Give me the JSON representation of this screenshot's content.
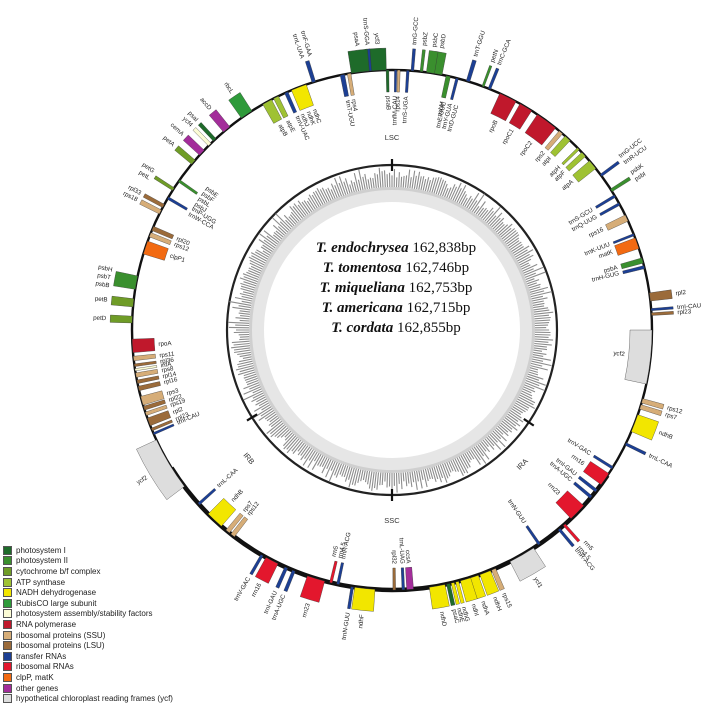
{
  "species": [
    {
      "name": "T. endochrysea",
      "size": "162,838bp"
    },
    {
      "name": "T. tomentosa",
      "size": "162,746bp"
    },
    {
      "name": "T. miqueliana",
      "size": "162,753bp"
    },
    {
      "name": "T. americana",
      "size": "162,715bp"
    },
    {
      "name": "T. cordata",
      "size": "162,855bp"
    }
  ],
  "regions": {
    "lsc": "LSC",
    "irb": "IRB",
    "ssc": "SSC",
    "ira": "IRA"
  },
  "colors": {
    "photosystem I": "#1e6b2a",
    "photosystem II": "#3a8f2e",
    "cytochrome b/f complex": "#6f9c27",
    "ATP synthase": "#9fc233",
    "NADH dehydrogenase": "#f2e600",
    "RubisCO large subunit": "#2e9a3a",
    "photosystem assembly/stability factors": "#fbfbd5",
    "RNA polymerase": "#c0182c",
    "ribosomal proteins (SSU)": "#d6ad78",
    "ribosomal proteins (LSU)": "#9b6b3a",
    "transfer RNAs": "#1c3f94",
    "ribosomal RNAs": "#e3172d",
    "clpP, matK": "#f26a12",
    "other genes": "#a32d9a",
    "hypothetical chloroplast reading frames (ycf)": "#dddddd"
  },
  "legend": [
    "photosystem I",
    "photosystem II",
    "cytochrome b/f complex",
    "ATP synthase",
    "NADH dehydrogenase",
    "RubisCO large subunit",
    "photosystem assembly/stability factors",
    "RNA polymerase",
    "ribosomal proteins (SSU)",
    "ribosomal proteins (LSU)",
    "transfer RNAs",
    "ribosomal RNAs",
    "clpP, matK",
    "other genes",
    "hypothetical chloroplast reading frames (ycf)"
  ],
  "genes": [
    {
      "a": 357,
      "w": 3.5,
      "o": 1,
      "c": "photosystem I",
      "l": [
        "ycf3"
      ]
    },
    {
      "a": 355,
      "w": 1,
      "o": 1,
      "c": "transfer RNAs",
      "l": [
        "trnS-GGA"
      ]
    },
    {
      "a": 350.5,
      "w": 0.8,
      "o": 0,
      "c": "ribosomal proteins (SSU)",
      "l": [
        "rps4"
      ]
    },
    {
      "a": 349,
      "w": 1,
      "o": 0,
      "c": "transfer RNAs",
      "l": [
        "trnT-UGU"
      ]
    },
    {
      "a": 342.5,
      "w": 0.8,
      "o": 1,
      "c": "transfer RNAs",
      "l": [
        "trnL-UAA",
        "trnF-GAA"
      ]
    },
    {
      "a": 339,
      "w": 3.5,
      "o": 0,
      "c": "NADH dehydrogenase",
      "l": [
        "ndhJ",
        "ndhK",
        "ndhC"
      ]
    },
    {
      "a": 336,
      "w": 0.8,
      "o": 0,
      "c": "transfer RNAs",
      "l": [
        "trnV-UAC"
      ]
    },
    {
      "a": 333.5,
      "w": 1.2,
      "o": 0,
      "c": "ATP synthase",
      "l": [
        "atpE"
      ]
    },
    {
      "a": 331.3,
      "w": 2.2,
      "o": 0,
      "c": "ATP synthase",
      "l": [
        "atpB"
      ]
    },
    {
      "a": 326,
      "w": 2.8,
      "o": 1,
      "c": "RubisCO large subunit",
      "l": [
        "rbcL"
      ]
    },
    {
      "a": 320.5,
      "w": 1.8,
      "o": 1,
      "c": "other genes",
      "l": [
        "accD"
      ]
    },
    {
      "a": 317,
      "w": 0.8,
      "o": 1,
      "c": "photosystem I",
      "l": [
        "psaI"
      ]
    },
    {
      "a": 315.5,
      "w": 0.8,
      "o": 1,
      "c": "photosystem assembly/stability factors",
      "l": [
        "ycf4"
      ]
    },
    {
      "a": 313,
      "w": 1.5,
      "o": 1,
      "c": "other genes",
      "l": [
        "cemA"
      ]
    },
    {
      "a": 310.2,
      "w": 1.2,
      "o": 1,
      "c": "cytochrome b/f complex",
      "l": [
        "petA"
      ]
    },
    {
      "a": 305,
      "w": 0.6,
      "o": 0,
      "c": "photosystem II",
      "l": [
        "psbJ",
        "psbL",
        "psbF",
        "psbE"
      ]
    },
    {
      "a": 302.8,
      "w": 0.7,
      "o": 1,
      "c": "cytochrome b/f complex",
      "l": [
        "petL",
        "petG"
      ]
    },
    {
      "a": 300.5,
      "w": 0.6,
      "o": 0,
      "c": "transfer RNAs",
      "l": [
        "trnW-CCA",
        "trnP-UGG"
      ]
    },
    {
      "a": 298.5,
      "w": 0.8,
      "o": 1,
      "c": "ribosomal proteins (LSU)",
      "l": [
        "rpl33"
      ]
    },
    {
      "a": 297,
      "w": 1,
      "o": 1,
      "c": "ribosomal proteins (SSU)",
      "l": [
        "rps18"
      ]
    },
    {
      "a": 293,
      "w": 1,
      "o": 0,
      "c": "ribosomal proteins (LSU)",
      "l": [
        "rpl20"
      ]
    },
    {
      "a": 291.5,
      "w": 1,
      "o": 0,
      "c": "ribosomal proteins (SSU)",
      "l": [
        "rps12"
      ]
    },
    {
      "a": 288.5,
      "w": 3,
      "o": 0,
      "c": "clpP, matK",
      "l": [
        "clpP1"
      ]
    },
    {
      "a": 280.5,
      "w": 3,
      "o": 1,
      "c": "photosystem II",
      "l": [
        "psbB",
        "psbT",
        "psbH"
      ]
    },
    {
      "a": 276,
      "w": 1.8,
      "o": 1,
      "c": "cytochrome b/f complex",
      "l": [
        "petB"
      ]
    },
    {
      "a": 272.3,
      "w": 1.5,
      "o": 1,
      "c": "cytochrome b/f complex",
      "l": [
        "petD"
      ]
    },
    {
      "a": 266.5,
      "w": 3,
      "o": 0,
      "c": "RNA polymerase",
      "l": [
        "rpoA"
      ]
    },
    {
      "a": 263.7,
      "w": 1,
      "o": 0,
      "c": "ribosomal proteins (SSU)",
      "l": [
        "rps11"
      ]
    },
    {
      "a": 262.2,
      "w": 0.6,
      "o": 0,
      "c": "ribosomal proteins (LSU)",
      "l": [
        "rpl36"
      ]
    },
    {
      "a": 261.2,
      "w": 0.5,
      "o": 0,
      "c": "photosystem assembly/stability factors",
      "l": [
        "infA"
      ]
    },
    {
      "a": 260,
      "w": 1,
      "o": 0,
      "c": "ribosomal proteins (SSU)",
      "l": [
        "rps8"
      ]
    },
    {
      "a": 258.5,
      "w": 0.8,
      "o": 0,
      "c": "ribosomal proteins (LSU)",
      "l": [
        "rpl14"
      ]
    },
    {
      "a": 257,
      "w": 1,
      "o": 0,
      "c": "ribosomal proteins (LSU)",
      "l": [
        "rpl16"
      ]
    },
    {
      "a": 254.2,
      "w": 2,
      "o": 0,
      "c": "ribosomal proteins (SSU)",
      "l": [
        "rps3"
      ]
    },
    {
      "a": 252.5,
      "w": 0.9,
      "o": 0,
      "c": "ribosomal proteins (LSU)",
      "l": [
        "rpl22"
      ]
    },
    {
      "a": 251.2,
      "w": 0.8,
      "o": 0,
      "c": "ribosomal proteins (SSU)",
      "l": [
        "rps19"
      ]
    },
    {
      "a": 249.3,
      "w": 1.8,
      "o": 0,
      "c": "ribosomal proteins (LSU)",
      "l": [
        "rpl2"
      ]
    },
    {
      "a": 247.5,
      "w": 0.6,
      "o": 0,
      "c": "ribosomal proteins (LSU)",
      "l": [
        "rpl23"
      ]
    },
    {
      "a": 246.5,
      "w": 0.5,
      "o": 0,
      "c": "transfer RNAs",
      "l": [
        "trnI-CAU"
      ]
    },
    {
      "a": 239,
      "w": 12,
      "o": 1,
      "c": "hypothetical chloroplast reading frames (ycf)",
      "l": [
        "ycf2"
      ]
    },
    {
      "a": 228,
      "w": 0.6,
      "o": 0,
      "c": "transfer RNAs",
      "l": [
        "trnL-CAA"
      ]
    },
    {
      "a": 223,
      "w": 4,
      "o": 0,
      "c": "NADH dehydrogenase",
      "l": [
        "ndhB"
      ]
    },
    {
      "a": 219.2,
      "w": 1,
      "o": 0,
      "c": "ribosomal proteins (SSU)",
      "l": [
        "rps7"
      ]
    },
    {
      "a": 217.8,
      "w": 1,
      "o": 0,
      "c": "ribosomal proteins (SSU)",
      "l": [
        "rps12"
      ]
    },
    {
      "a": 210,
      "w": 0.6,
      "o": 1,
      "c": "transfer RNAs",
      "l": [
        "trnV-GAC"
      ]
    },
    {
      "a": 207.5,
      "w": 3,
      "o": 1,
      "c": "ribosomal RNAs",
      "l": [
        "rrn16"
      ]
    },
    {
      "a": 204,
      "w": 0.7,
      "o": 1,
      "c": "transfer RNAs",
      "l": [
        "trnI-GAU"
      ]
    },
    {
      "a": 202.2,
      "w": 0.7,
      "o": 1,
      "c": "transfer RNAs",
      "l": [
        "trnA-UGC"
      ]
    },
    {
      "a": 197,
      "w": 4,
      "o": 1,
      "c": "ribosomal RNAs",
      "l": [
        "rrn23"
      ]
    },
    {
      "a": 193.6,
      "w": 0.6,
      "o": 0,
      "c": "ribosomal RNAs",
      "l": [
        "rrn4.5",
        "rrn5"
      ]
    },
    {
      "a": 192,
      "w": 0.6,
      "o": 0,
      "c": "transfer RNAs",
      "l": [
        "trnR-ACG"
      ]
    },
    {
      "a": 188.8,
      "w": 0.6,
      "o": 1,
      "c": "transfer RNAs",
      "l": [
        "trnN-GUU"
      ]
    },
    {
      "a": 186,
      "w": 4.5,
      "o": 1,
      "c": "NADH dehydrogenase",
      "l": [
        "ndhF"
      ]
    },
    {
      "a": 179.5,
      "w": 0.6,
      "o": 0,
      "c": "ribosomal proteins (LSU)",
      "l": [
        "rpl32"
      ]
    },
    {
      "a": 177.5,
      "w": 0.6,
      "o": 0,
      "c": "transfer RNAs",
      "l": [
        "trnL-UAG"
      ]
    },
    {
      "a": 176,
      "w": 1.5,
      "o": 0,
      "c": "other genes",
      "l": [
        "ccsA"
      ]
    },
    {
      "a": 170,
      "w": 3.5,
      "o": 1,
      "c": "NADH dehydrogenase",
      "l": [
        "ndhD"
      ]
    },
    {
      "a": 167.5,
      "w": 0.8,
      "o": 1,
      "c": "photosystem I",
      "l": [
        "psaC"
      ]
    },
    {
      "a": 166.5,
      "w": 0.7,
      "o": 1,
      "c": "NADH dehydrogenase",
      "l": [
        "ndhE"
      ]
    },
    {
      "a": 165.5,
      "w": 0.7,
      "o": 1,
      "c": "NADH dehydrogenase",
      "l": [
        "ndhG"
      ]
    },
    {
      "a": 163.5,
      "w": 2.5,
      "o": 1,
      "c": "NADH dehydrogenase",
      "l": [
        "ndhI"
      ]
    },
    {
      "a": 161.5,
      "w": 1.8,
      "o": 1,
      "c": "NADH dehydrogenase",
      "l": [
        "ndhA"
      ]
    },
    {
      "a": 159,
      "w": 2.5,
      "o": 1,
      "c": "NADH dehydrogenase",
      "l": [
        "ndhH"
      ]
    },
    {
      "a": 157,
      "w": 1,
      "o": 1,
      "c": "ribosomal proteins (SSU)",
      "l": [
        "rps15"
      ]
    },
    {
      "a": 150,
      "w": 6,
      "o": 1,
      "c": "hypothetical chloroplast reading frames (ycf)",
      "l": [
        "ycf1"
      ]
    },
    {
      "a": 145.5,
      "w": 0.6,
      "o": 0,
      "c": "transfer RNAs",
      "l": [
        "trnN-GUU"
      ]
    },
    {
      "a": 140,
      "w": 0.6,
      "o": 1,
      "c": "transfer RNAs",
      "l": [
        "trnR-ACG"
      ]
    },
    {
      "a": 138.5,
      "w": 0.6,
      "o": 1,
      "c": "ribosomal RNAs",
      "l": [
        "rrn5",
        "rrn4.5"
      ]
    },
    {
      "a": 134.5,
      "w": 4,
      "o": 0,
      "c": "ribosomal RNAs",
      "l": [
        "rrn23"
      ]
    },
    {
      "a": 130,
      "w": 0.7,
      "o": 0,
      "c": "transfer RNAs",
      "l": [
        "trnA-UGC"
      ]
    },
    {
      "a": 128.2,
      "w": 0.7,
      "o": 0,
      "c": "transfer RNAs",
      "l": [
        "trnI-GAU"
      ]
    },
    {
      "a": 125,
      "w": 3,
      "o": 0,
      "c": "ribosomal RNAs",
      "l": [
        "rrn16"
      ]
    },
    {
      "a": 122,
      "w": 0.6,
      "o": 0,
      "c": "transfer RNAs",
      "l": [
        "trnV-GAC"
      ]
    },
    {
      "a": 116,
      "w": 0.6,
      "o": 1,
      "c": "transfer RNAs",
      "l": [
        "trnL-CAA"
      ]
    },
    {
      "a": 111,
      "w": 4,
      "o": 1,
      "c": "NADH dehydrogenase",
      "l": [
        "ndhB"
      ]
    },
    {
      "a": 107.2,
      "w": 1,
      "o": 1,
      "c": "ribosomal proteins (SSU)",
      "l": [
        "rps7"
      ]
    },
    {
      "a": 105.8,
      "w": 1,
      "o": 1,
      "c": "ribosomal proteins (SSU)",
      "l": [
        "rps12"
      ]
    },
    {
      "a": 96,
      "w": 12,
      "o": 0,
      "c": "hypothetical chloroplast reading frames (ycf)",
      "l": [
        "ycf2"
      ]
    },
    {
      "a": 86.5,
      "w": 0.6,
      "o": 1,
      "c": "ribosomal proteins (LSU)",
      "l": [
        "rpl23"
      ]
    },
    {
      "a": 85.5,
      "w": 0.5,
      "o": 1,
      "c": "transfer RNAs",
      "l": [
        "trnI-CAU"
      ]
    },
    {
      "a": 82.7,
      "w": 1.8,
      "o": 1,
      "c": "ribosomal proteins (LSU)",
      "l": [
        "rpl2"
      ]
    },
    {
      "a": 76,
      "w": 0.7,
      "o": 0,
      "c": "transfer RNAs",
      "l": [
        "trnH-GUG"
      ]
    },
    {
      "a": 74.5,
      "w": 1.2,
      "o": 0,
      "c": "photosystem II",
      "l": [
        "psbA"
      ]
    },
    {
      "a": 70.5,
      "w": 2.5,
      "o": 0,
      "c": "clpP, matK",
      "l": [
        "matK"
      ]
    },
    {
      "a": 68.5,
      "w": 0.5,
      "o": 0,
      "c": "transfer RNAs",
      "l": [
        "trnK-UUU"
      ]
    },
    {
      "a": 64.5,
      "w": 1.5,
      "o": 0,
      "c": "ribosomal proteins (SSU)",
      "l": [
        "rps16"
      ]
    },
    {
      "a": 61,
      "w": 0.6,
      "o": 0,
      "c": "transfer RNAs",
      "l": [
        "trnQ-UUG"
      ]
    },
    {
      "a": 59,
      "w": 0.6,
      "o": 0,
      "c": "transfer RNAs",
      "l": [
        "trnS-GCU"
      ]
    },
    {
      "a": 57.5,
      "w": 0.7,
      "o": 1,
      "c": "photosystem II",
      "l": [
        "psbK",
        "psbI"
      ]
    },
    {
      "a": 53.5,
      "w": 0.6,
      "o": 1,
      "c": "transfer RNAs",
      "l": [
        "trnG-UCC",
        "trnR-UCU"
      ]
    },
    {
      "a": 50.5,
      "w": 2.2,
      "o": 0,
      "c": "ATP synthase",
      "l": [
        "atpA"
      ]
    },
    {
      "a": 47.5,
      "w": 1.2,
      "o": 0,
      "c": "ATP synthase",
      "l": [
        "atpF"
      ]
    },
    {
      "a": 45.8,
      "w": 0.6,
      "o": 0,
      "c": "ATP synthase",
      "l": [
        "atpH"
      ]
    },
    {
      "a": 42.5,
      "w": 1.5,
      "o": 0,
      "c": "ATP synthase",
      "l": [
        "atpI"
      ]
    },
    {
      "a": 40.5,
      "w": 1,
      "o": 0,
      "c": "ribosomal proteins (SSU)",
      "l": [
        "rps2"
      ]
    },
    {
      "a": 36.5,
      "w": 5,
      "o": 0,
      "c": "RNA polymerase",
      "l": [
        "rpoC2"
      ]
    },
    {
      "a": 31,
      "w": 3,
      "o": 0,
      "c": "RNA polymerase",
      "l": [
        "rpoC1"
      ]
    },
    {
      "a": 26.5,
      "w": 4,
      "o": 0,
      "c": "RNA polymerase",
      "l": [
        "rpoB"
      ]
    },
    {
      "a": 22,
      "w": 0.6,
      "o": 1,
      "c": "transfer RNAs",
      "l": [
        "trnC-GCA"
      ]
    },
    {
      "a": 20.5,
      "w": 0.5,
      "o": 1,
      "c": "photosystem II",
      "l": [
        "petN"
      ]
    },
    {
      "a": 17,
      "w": 0.8,
      "o": 1,
      "c": "transfer RNAs",
      "l": [
        "trnT-GGU"
      ]
    },
    {
      "a": 14.5,
      "w": 0.6,
      "o": 0,
      "c": "transfer RNAs",
      "l": [
        "trnE-UUC",
        "trnY-GUA",
        "trnD-GUC"
      ]
    },
    {
      "a": 12.5,
      "w": 1,
      "o": 0,
      "c": "photosystem II",
      "l": [
        "psbM"
      ]
    },
    {
      "a": 10,
      "w": 2.2,
      "o": 1,
      "c": "photosystem II",
      "l": [
        "psbD"
      ]
    },
    {
      "a": 8.5,
      "w": 1.8,
      "o": 1,
      "c": "photosystem II",
      "l": [
        "psbC"
      ]
    },
    {
      "a": 6.5,
      "w": 0.6,
      "o": 1,
      "c": "photosystem II",
      "l": [
        "psbZ"
      ]
    },
    {
      "a": 4.5,
      "w": 0.6,
      "o": 1,
      "c": "transfer RNAs",
      "l": [
        "trnG-GCC"
      ]
    },
    {
      "a": 3.5,
      "w": 0.6,
      "o": 0,
      "c": "transfer RNAs",
      "l": [
        "trnS-UGA"
      ]
    },
    {
      "a": 1.5,
      "w": 0.6,
      "o": 0,
      "c": "ribosomal proteins (SSU)",
      "l": [
        "rps14"
      ]
    },
    {
      "a": 0.8,
      "w": 0.5,
      "o": 0,
      "c": "transfer RNAs",
      "l": [
        "trnfM-CAU"
      ]
    },
    {
      "a": 359,
      "w": 0.6,
      "o": 0,
      "c": "photosystem I",
      "l": [
        "psaB"
      ]
    },
    {
      "a": 362,
      "w": 0.1,
      "o": 0,
      "c": "photosystem I",
      "l": []
    },
    {
      "a": 4,
      "w": 0.1,
      "o": 0,
      "c": "photosystem I",
      "l": []
    },
    {
      "a": 6,
      "w": 0.1,
      "o": 0,
      "c": "photosystem I",
      "l": []
    },
    {
      "a": 353,
      "w": 4,
      "o": 1,
      "c": "photosystem I",
      "l": [
        "psaA"
      ]
    }
  ],
  "ticks": [
    {
      "a": 0,
      "label": "lsc"
    },
    {
      "a": 238,
      "label": "irb"
    },
    {
      "a": 180,
      "label": "ssc"
    },
    {
      "a": 124,
      "label": "ira"
    }
  ]
}
